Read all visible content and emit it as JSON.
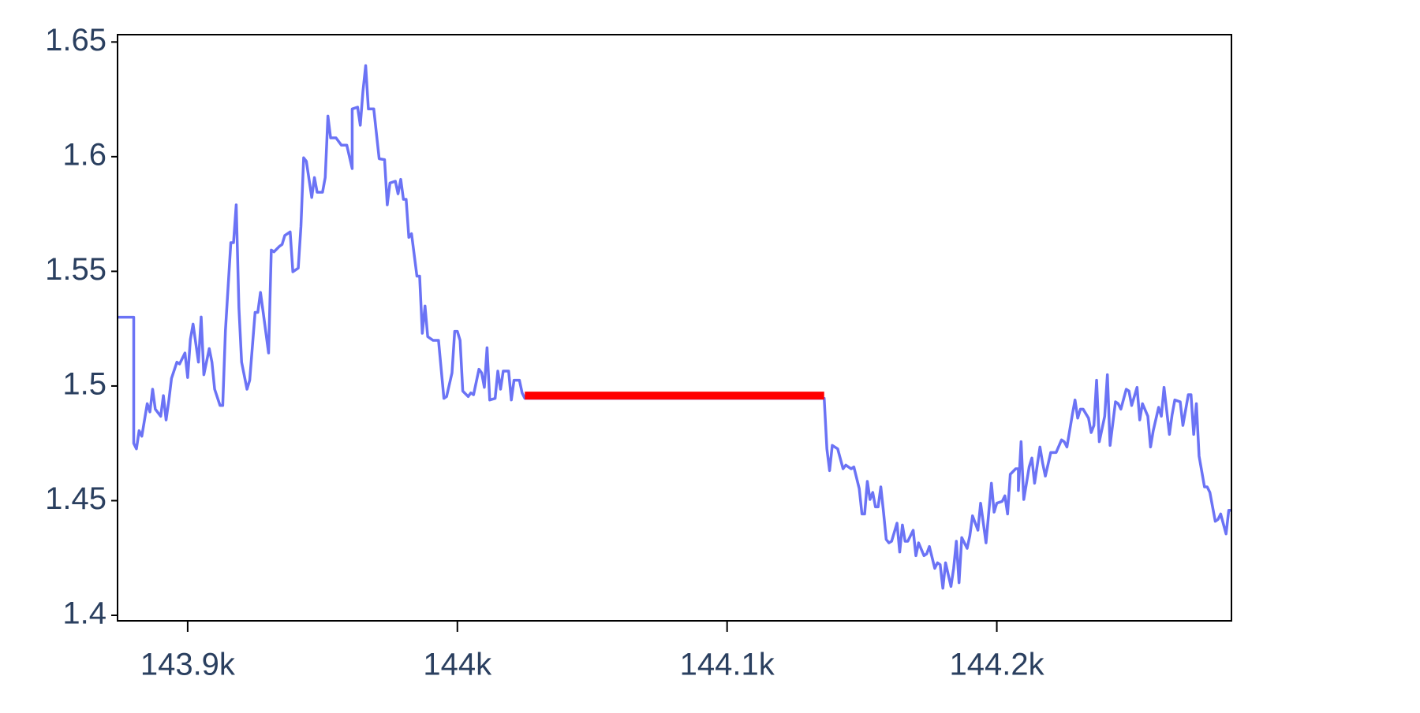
{
  "chart_data": {
    "type": "line",
    "xlim": [
      143874,
      144287
    ],
    "ylim": [
      1.3976,
      1.6532
    ],
    "xticks": [
      {
        "value": 143900,
        "label": "143.9k"
      },
      {
        "value": 144000,
        "label": "144k"
      },
      {
        "value": 144100,
        "label": "144.1k"
      },
      {
        "value": 144200,
        "label": "144.2k"
      }
    ],
    "yticks": [
      1.4,
      1.45,
      1.5,
      1.55,
      1.6,
      1.65
    ],
    "grid": false,
    "series": [
      {
        "color": "#6b73f5",
        "x": [
          143874,
          143880,
          143880,
          143881,
          143882,
          143883,
          143885,
          143886,
          143887,
          143888,
          143890,
          143891,
          143892,
          143893,
          143894,
          143896,
          143897,
          143899,
          143900,
          143901,
          143902,
          143904,
          143905,
          143906,
          143908,
          143909,
          143910,
          143912,
          143913,
          143914,
          143916,
          143917,
          143918,
          143919,
          143920,
          143922,
          143923,
          143925,
          143926,
          143927,
          143928,
          143930,
          143931,
          143932,
          143934,
          143935,
          143936,
          143938,
          143939,
          143941,
          143942,
          143943,
          143944,
          143946,
          143947,
          143948,
          143950,
          143951,
          143952,
          143953,
          143955,
          143957,
          143959,
          143961,
          143961,
          143963,
          143964,
          143965,
          143966,
          143967,
          143969,
          143971,
          143973,
          143974,
          143975,
          143977,
          143978,
          143979,
          143980,
          143981,
          143982,
          143983,
          143985,
          143986,
          143987,
          143988,
          143989,
          143991,
          143993,
          143995,
          143996,
          143998,
          143999,
          144000,
          144001,
          144002,
          144004,
          144005,
          144006,
          144008,
          144009,
          144010,
          144011,
          144012,
          144014,
          144015,
          144016,
          144017,
          144019,
          144020,
          144021,
          144023,
          144024,
          144025,
          144136,
          144137,
          144138,
          144139,
          144141,
          144143,
          144144,
          144146,
          144147,
          144149,
          144150,
          144151,
          144152,
          144153,
          144154,
          144155,
          144156,
          144157,
          144158,
          144159,
          144160,
          144161,
          144163,
          144164,
          144165,
          144166,
          144167,
          144169,
          144170,
          144171,
          144173,
          144174,
          144175,
          144177,
          144178,
          144179,
          144180,
          144181,
          144183,
          144184,
          144185,
          144186,
          144187,
          144189,
          144190,
          144191,
          144193,
          144194,
          144196,
          144198,
          144199,
          144200,
          144202,
          144203,
          144204,
          144205,
          144207,
          144208,
          144208,
          144209,
          144210,
          144212,
          144213,
          144214,
          144216,
          144217,
          144218,
          144220,
          144221,
          144222,
          144224,
          144225,
          144226,
          144228,
          144229,
          144230,
          144231,
          144232,
          144234,
          144235,
          144236,
          144237,
          144238,
          144240,
          144241,
          144242,
          144244,
          144245,
          144246,
          144248,
          144249,
          144250,
          144252,
          144253,
          144254,
          144256,
          144257,
          144258,
          144260,
          144261,
          144262,
          144264,
          144265,
          144266,
          144268,
          144269,
          144271,
          144272,
          144273,
          144274,
          144275,
          144277,
          144278,
          144279,
          144281,
          144282,
          144283,
          144285,
          144286,
          144287
        ],
        "values": [
          1.53,
          1.53,
          1.475,
          1.4726,
          1.4805,
          1.4781,
          1.4923,
          1.4887,
          1.4986,
          1.4899,
          1.4868,
          1.4958,
          1.4852,
          1.4935,
          1.5033,
          1.5104,
          1.5096,
          1.5144,
          1.5037,
          1.5203,
          1.527,
          1.5104,
          1.5301,
          1.5049,
          1.5163,
          1.5104,
          1.4986,
          1.4915,
          1.4915,
          1.5242,
          1.5625,
          1.5625,
          1.579,
          1.5341,
          1.5104,
          1.4986,
          1.5025,
          1.5321,
          1.5321,
          1.5408,
          1.5321,
          1.5144,
          1.5593,
          1.5585,
          1.5609,
          1.5617,
          1.5656,
          1.5672,
          1.5498,
          1.5514,
          1.5696,
          1.5995,
          1.598,
          1.5822,
          1.5909,
          1.5845,
          1.5845,
          1.5909,
          1.6177,
          1.6082,
          1.6082,
          1.605,
          1.605,
          1.5948,
          1.6208,
          1.6216,
          1.6137,
          1.6287,
          1.6397,
          1.6208,
          1.6208,
          1.5991,
          1.5987,
          1.579,
          1.5885,
          1.5893,
          1.5838,
          1.5901,
          1.5814,
          1.5814,
          1.5648,
          1.5664,
          1.5479,
          1.5479,
          1.523,
          1.5349,
          1.5215,
          1.5199,
          1.5199,
          1.4946,
          1.4954,
          1.5057,
          1.5238,
          1.5238,
          1.5199,
          1.4978,
          1.4954,
          1.497,
          1.4962,
          1.5073,
          1.5057,
          1.4994,
          1.5167,
          1.4939,
          1.4946,
          1.5065,
          1.4986,
          1.5065,
          1.5065,
          1.4939,
          1.5025,
          1.5025,
          1.497,
          1.4946,
          1.4946,
          1.4726,
          1.4631,
          1.4741,
          1.4726,
          1.4639,
          1.4655,
          1.4639,
          1.4647,
          1.4552,
          1.4442,
          1.4442,
          1.4584,
          1.4505,
          1.4536,
          1.4473,
          1.4473,
          1.456,
          1.445,
          1.4331,
          1.4316,
          1.4323,
          1.4402,
          1.4276,
          1.4394,
          1.4323,
          1.4323,
          1.4371,
          1.426,
          1.4316,
          1.426,
          1.4268,
          1.43,
          1.4205,
          1.4229,
          1.4221,
          1.4118,
          1.4229,
          1.4126,
          1.4205,
          1.4323,
          1.4142,
          1.4339,
          1.4292,
          1.4347,
          1.4434,
          1.4371,
          1.4489,
          1.4316,
          1.4576,
          1.445,
          1.4489,
          1.4497,
          1.4521,
          1.4442,
          1.4615,
          1.4639,
          1.4639,
          1.4544,
          1.4757,
          1.4505,
          1.4647,
          1.4686,
          1.4576,
          1.4734,
          1.4663,
          1.4607,
          1.471,
          1.471,
          1.471,
          1.4765,
          1.4757,
          1.4734,
          1.4875,
          1.4939,
          1.486,
          1.4899,
          1.4899,
          1.486,
          1.4797,
          1.4828,
          1.5025,
          1.4757,
          1.4868,
          1.5049,
          1.4741,
          1.4931,
          1.4923,
          1.4899,
          1.4986,
          1.4978,
          1.4915,
          1.4994,
          1.4852,
          1.4923,
          1.4868,
          1.4734,
          1.4805,
          1.4907,
          1.4868,
          1.4994,
          1.4789,
          1.4875,
          1.4939,
          1.4931,
          1.4828,
          1.4962,
          1.4962,
          1.4789,
          1.4923,
          1.4694,
          1.456,
          1.456,
          1.4536,
          1.441,
          1.4418,
          1.4442,
          1.4355,
          1.4458,
          1.4458
        ]
      },
      {
        "color": "#ff0000",
        "x": [
          144025,
          144136
        ],
        "values": [
          1.4958,
          1.4958
        ]
      }
    ]
  }
}
